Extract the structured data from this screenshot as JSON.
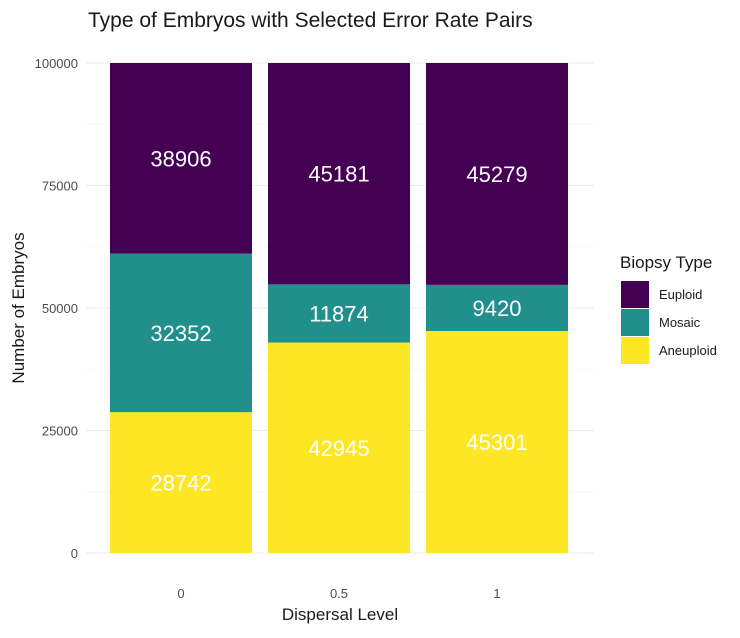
{
  "chart_data": {
    "type": "bar",
    "stacked": true,
    "title": "Type of Embryos with Selected Error Rate Pairs",
    "xlabel": "Dispersal Level",
    "ylabel": "Number of Embryos",
    "categories": [
      "0",
      "0.5",
      "1"
    ],
    "ylim": [
      0,
      100000
    ],
    "yticks": [
      0,
      25000,
      50000,
      75000,
      100000
    ],
    "ytick_labels": [
      "0",
      "25000",
      "50000",
      "75000",
      "100000"
    ],
    "grid": true,
    "legend": {
      "title": "Biopsy Type",
      "position": "right"
    },
    "series": [
      {
        "name": "Aneuploid",
        "color": "#FDE725",
        "values": [
          28742,
          42945,
          45301
        ],
        "labels": [
          "28742",
          "42945",
          "45301"
        ]
      },
      {
        "name": "Mosaic",
        "color": "#21908C",
        "values": [
          32352,
          11874,
          9420
        ],
        "labels": [
          "32352",
          "11874",
          "9420"
        ]
      },
      {
        "name": "Euploid",
        "color": "#440154",
        "values": [
          38906,
          45181,
          45279
        ],
        "labels": [
          "38906",
          "45181",
          "45279"
        ]
      }
    ],
    "legend_order": [
      "Euploid",
      "Mosaic",
      "Aneuploid"
    ]
  }
}
